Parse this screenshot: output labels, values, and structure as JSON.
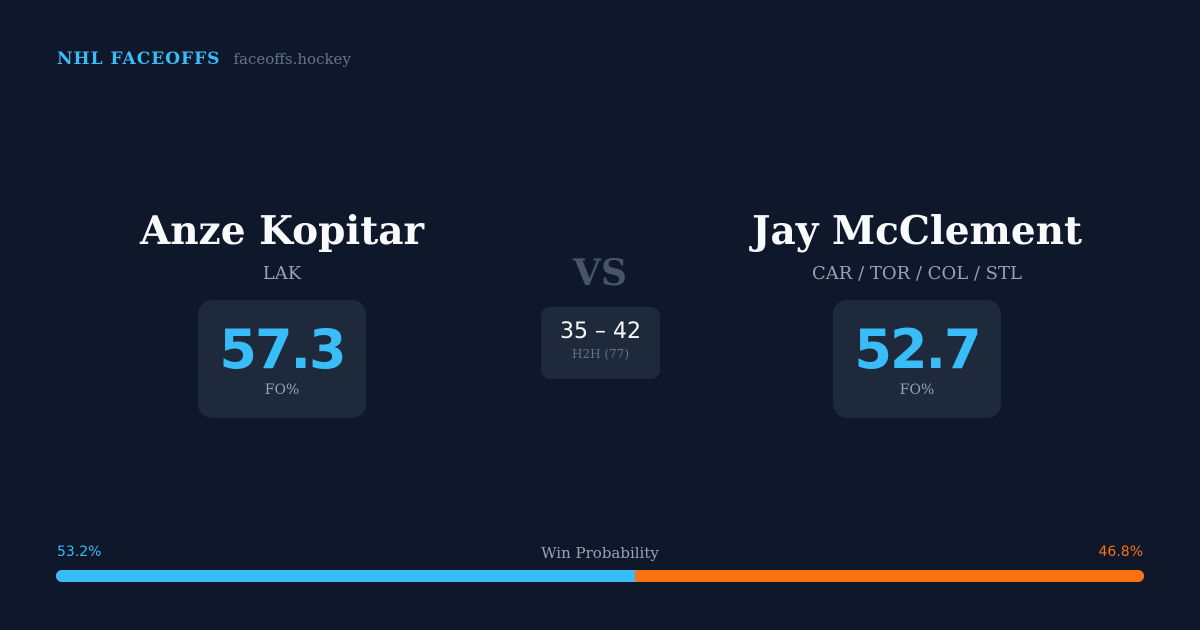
{
  "brand": {
    "name": "NHL FACEOFFS",
    "url": "faceoffs.hockey"
  },
  "players": [
    {
      "name": "Anze Kopitar",
      "team": "LAK",
      "fo_pct": "57.3",
      "fo_label": "FO%"
    },
    {
      "name": "Jay McClement",
      "team": "CAR / TOR / COL / STL",
      "fo_pct": "52.7",
      "fo_label": "FO%"
    }
  ],
  "vs": "VS",
  "h2h": {
    "score": "35 – 42",
    "label": "H2H (77)"
  },
  "win_probability": {
    "title": "Win Probability",
    "left": "53.2%",
    "right": "46.8%",
    "left_value": 53.2,
    "right_value": 46.8
  },
  "colors": {
    "accent": "#38bdf8",
    "opponent": "#f97316",
    "background": "#0f172a",
    "card": "#1e293b"
  }
}
